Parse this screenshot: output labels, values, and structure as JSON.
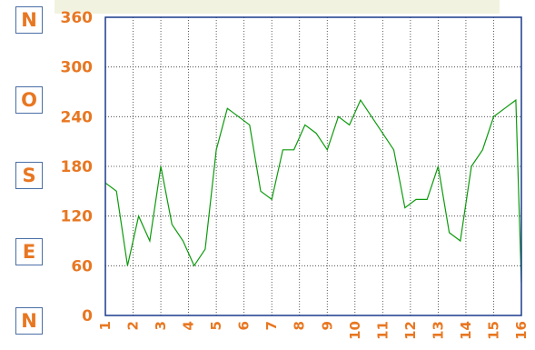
{
  "chart_data": {
    "type": "line",
    "compass_labels": [
      "N",
      "O",
      "S",
      "E",
      "N"
    ],
    "y_ticks": [
      0,
      60,
      120,
      180,
      240,
      300,
      360
    ],
    "x_ticks": [
      "1",
      "2",
      "3",
      "4",
      "5",
      "6",
      "7",
      "8",
      "9",
      "10",
      "11",
      "12",
      "13",
      "14",
      "15",
      "16"
    ],
    "xlim": [
      1,
      16
    ],
    "ylim": [
      0,
      360
    ],
    "grid": true,
    "series": [
      {
        "color": "#0c9a0c",
        "x": [
          1,
          1.4,
          1.8,
          2.2,
          2.6,
          3,
          3.4,
          3.8,
          4.2,
          4.6,
          5,
          5.4,
          5.8,
          6.2,
          6.6,
          7,
          7.4,
          7.8,
          8.2,
          8.6,
          9,
          9.4,
          9.8,
          10.2,
          10.6,
          11,
          11.4,
          11.8,
          12.2,
          12.6,
          13,
          13.4,
          13.8,
          14.2,
          14.6,
          15,
          15.4,
          15.8,
          16
        ],
        "values": [
          160,
          150,
          60,
          120,
          90,
          180,
          110,
          90,
          60,
          80,
          200,
          250,
          240,
          230,
          150,
          140,
          200,
          200,
          230,
          220,
          200,
          240,
          230,
          260,
          240,
          220,
          200,
          130,
          140,
          140,
          180,
          100,
          90,
          180,
          200,
          240,
          250,
          260,
          40
        ]
      }
    ]
  }
}
